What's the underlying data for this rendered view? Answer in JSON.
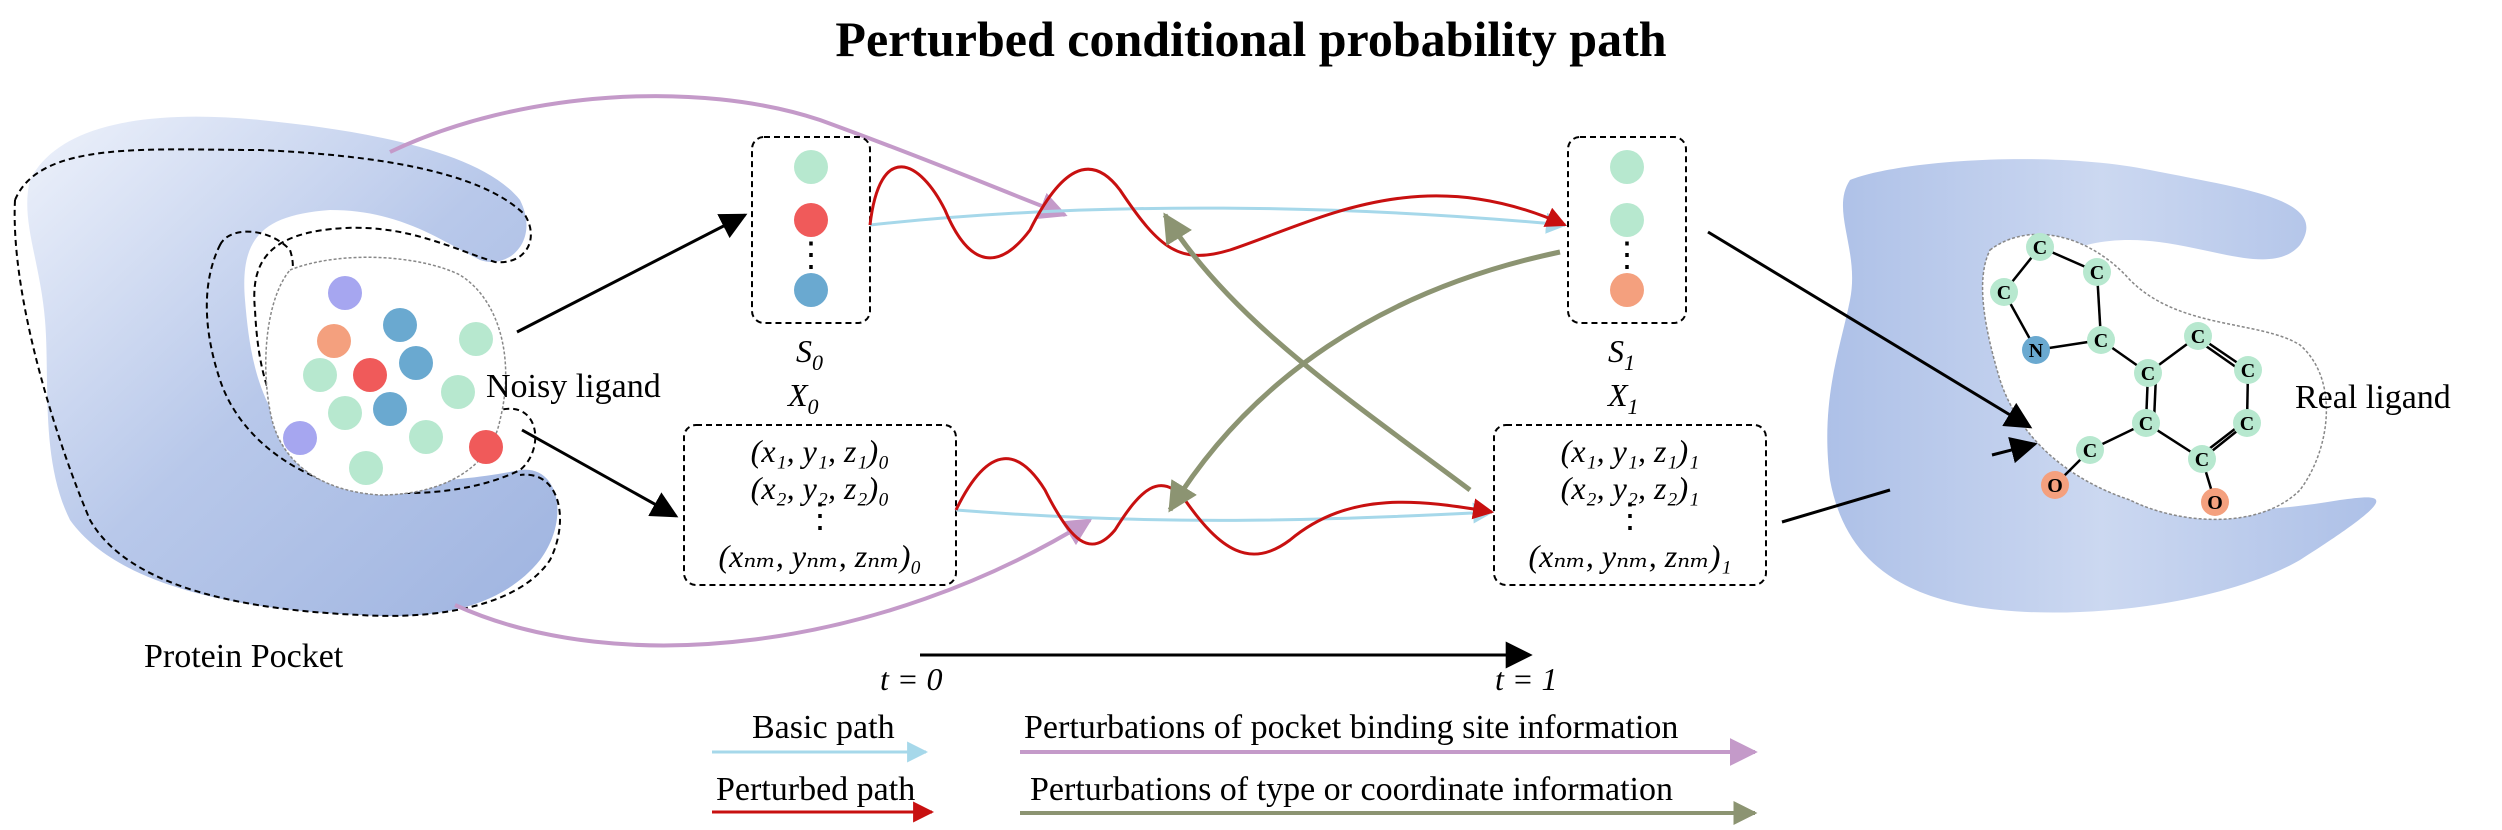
{
  "title": "Perturbed conditional probability path",
  "labels": {
    "protein_pocket": "Protein Pocket",
    "noisy_ligand": "Noisy ligand",
    "real_ligand": "Real ligand"
  },
  "left_block": {
    "s": "S",
    "s_sub": "0",
    "x": "X",
    "x_sub": "0",
    "coords": [
      "(x₁, y₁, z₁)₀",
      "(x₂, y₂, z₂)₀",
      "(xₙₘ, yₙₘ, zₙₘ)₀"
    ],
    "dots": "⋮"
  },
  "right_block": {
    "s": "S",
    "s_sub": "1",
    "x": "X",
    "x_sub": "1",
    "coords": [
      "(x₁, y₁, z₁)₁",
      "(x₂, y₂, z₂)₁",
      "(xₙₘ, yₙₘ, zₙₘ)₁"
    ],
    "dots": "⋮"
  },
  "time": {
    "t_start": "t = 0",
    "t_end": "t = 1"
  },
  "legend": {
    "basic_path": "Basic path",
    "perturbed_path": "Perturbed path",
    "pocket_perturb": "Perturbations of pocket binding site information",
    "type_coord_perturb": "Perturbations of type or coordinate information"
  },
  "molecule_atoms": [
    "C",
    "C",
    "C",
    "C",
    "N",
    "C",
    "C",
    "C",
    "C",
    "C",
    "C",
    "C",
    "C",
    "O",
    "O"
  ],
  "colors": {
    "pocket_blue": "#a9bde3",
    "atom_green": "#b7e8cf",
    "atom_red": "#f05a5a",
    "atom_blue": "#6aa9d0",
    "atom_orange": "#f4a07e",
    "atom_purple": "#a6a6f0",
    "basic_path": "#a6d8ea",
    "perturbed_path": "#c81010",
    "pocket_perturb": "#c49ac9",
    "type_coord_perturb": "#8c9472"
  }
}
